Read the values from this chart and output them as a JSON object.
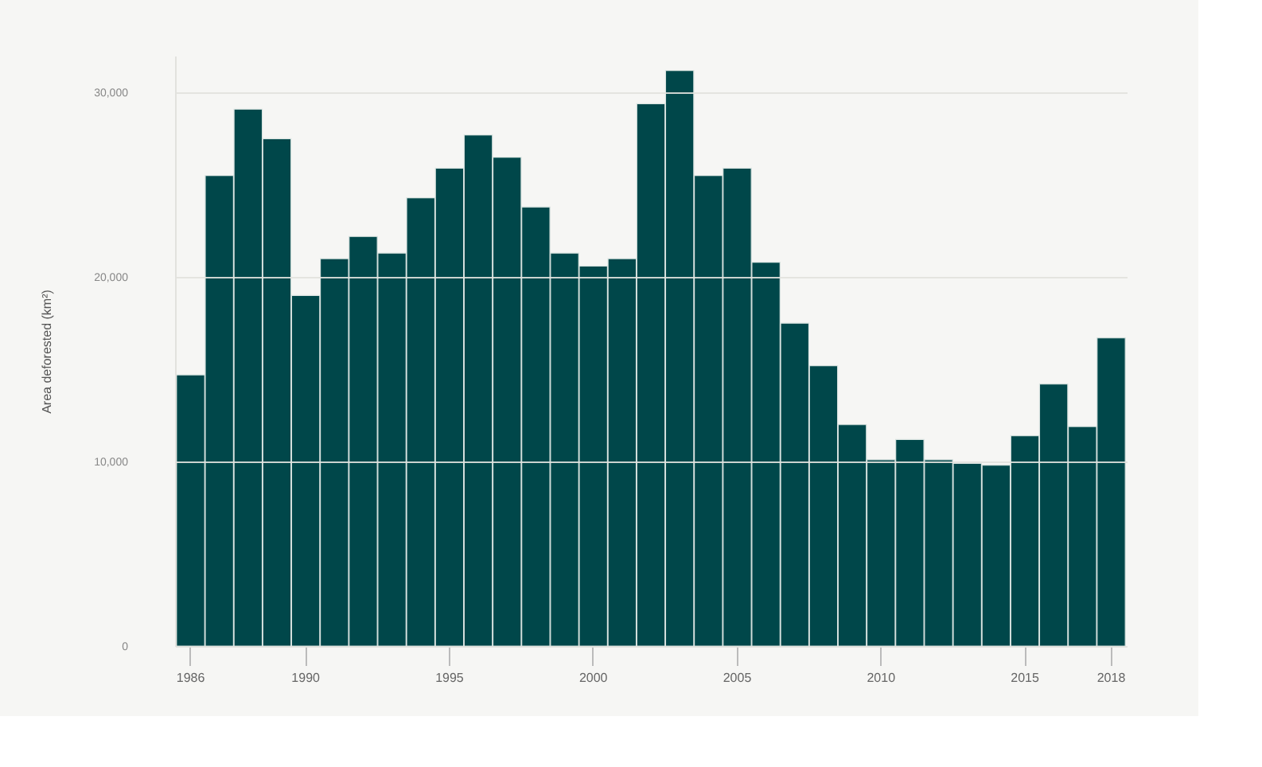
{
  "chart_data": {
    "type": "bar",
    "ylabel": "Area deforested (km²)",
    "categories": [
      "1986",
      null,
      null,
      null,
      "1990",
      null,
      null,
      null,
      null,
      "1995",
      null,
      null,
      null,
      null,
      "2000",
      null,
      null,
      null,
      null,
      "2005",
      null,
      null,
      null,
      null,
      "2010",
      null,
      null,
      null,
      null,
      "2015",
      null,
      null,
      "2018"
    ],
    "values": [
      14700,
      25500,
      29100,
      27500,
      19000,
      21000,
      22200,
      21300,
      24300,
      25900,
      27700,
      26500,
      23800,
      21300,
      20600,
      21000,
      29400,
      31200,
      25500,
      25900,
      20800,
      17500,
      15200,
      12000,
      10100,
      11200,
      10100,
      9900,
      9800,
      11400,
      14200,
      11900,
      16700
    ],
    "color": "#00474a",
    "ylim": [
      0,
      32000
    ],
    "yticks": [
      0,
      {
        "value": 10000,
        "label": "10,000"
      },
      {
        "value": 20000,
        "label": "20,000"
      },
      {
        "value": 30000,
        "label": "30,000"
      }
    ],
    "grid": "y"
  }
}
